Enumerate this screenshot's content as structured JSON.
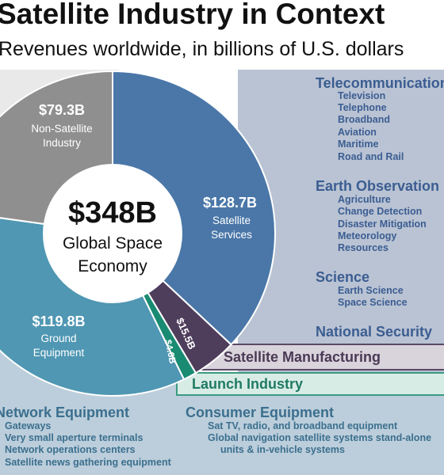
{
  "chart_data": {
    "type": "pie",
    "title": "Satellite Industry in Context",
    "subtitle": "Revenues worldwide, in billions of U.S. dollars",
    "center_value": "$348B",
    "center_label_line1": "Global Space",
    "center_label_line2": "Economy",
    "total": 348,
    "slices": [
      {
        "name_line1": "Satellite",
        "name_line2": "Services",
        "value": 128.7,
        "value_label": "$128.7B",
        "color": "#4a77a8"
      },
      {
        "name": "Satellite Manufacturing",
        "value": 15.5,
        "value_label": "$15.5B",
        "color": "#4f3d5c"
      },
      {
        "name": "Launch Industry",
        "value": 4.6,
        "value_label": "$4.6B",
        "color": "#1a8b73"
      },
      {
        "name_line1": "Ground",
        "name_line2": "Equipment",
        "value": 119.8,
        "value_label": "$119.8B",
        "color": "#4f97b3"
      },
      {
        "name_line1": "Non-Satellite",
        "name_line2": "Industry",
        "value": 79.3,
        "value_label": "$79.3B",
        "color": "#8f8f8f"
      }
    ],
    "satellite_services_categories": [
      {
        "heading": "Telecommunications",
        "items": [
          "Television",
          "Telephone",
          "Broadband",
          "Aviation",
          "Maritime",
          "Road and Rail"
        ]
      },
      {
        "heading": "Earth Observation",
        "items": [
          "Agriculture",
          "Change Detection",
          "Disaster Mitigation",
          "Meteorology",
          "Resources"
        ]
      },
      {
        "heading": "Science",
        "items": [
          "Earth Science",
          "Space Science"
        ]
      },
      {
        "heading": "National Security",
        "items": []
      }
    ],
    "ground_equipment_categories": [
      {
        "heading": "Network Equipment",
        "items": [
          "Gateways",
          "Very small aperture terminals",
          "Network operations centers",
          "Satellite news gathering equipment"
        ]
      },
      {
        "heading": "Consumer Equipment",
        "items": [
          "Sat TV, radio, and broadband equipment",
          "Global navigation satellite systems stand-alone",
          "units & in-vehicle systems"
        ]
      }
    ]
  }
}
